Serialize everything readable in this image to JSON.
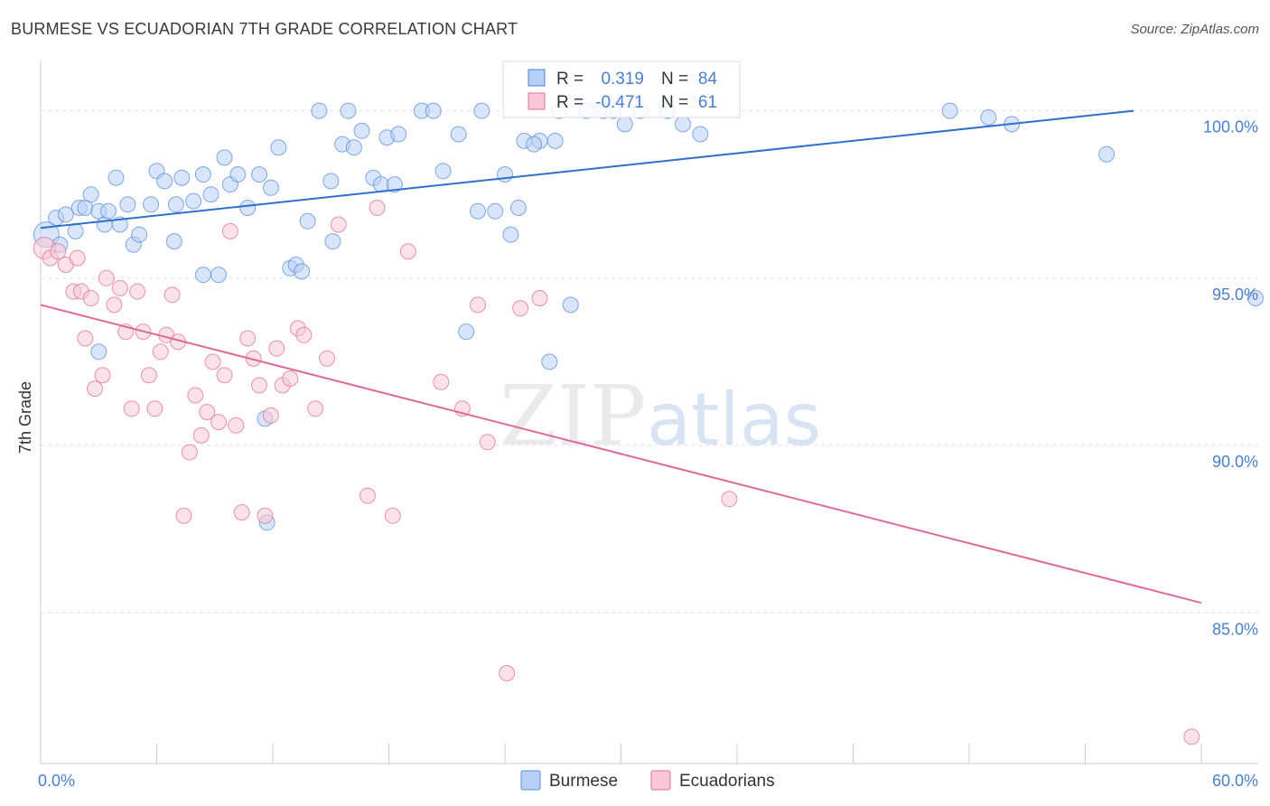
{
  "title": "BURMESE VS ECUADORIAN 7TH GRADE CORRELATION CHART",
  "source": "Source: ZipAtlas.com",
  "watermark": {
    "zip": "ZIP",
    "atlas": "atlas"
  },
  "chart_data": {
    "type": "scatter",
    "ylabel": "7th Grade",
    "xlim": [
      0,
      60
    ],
    "ylim": [
      80.5,
      101.5
    ],
    "x_ticks": [
      {
        "value": 0,
        "label": "0.0%"
      },
      {
        "value": 60,
        "label": "60.0%"
      }
    ],
    "y_ticks": [
      {
        "value": 100,
        "label": "100.0%"
      },
      {
        "value": 95,
        "label": "95.0%"
      },
      {
        "value": 90,
        "label": "90.0%"
      },
      {
        "value": 85,
        "label": "85.0%"
      }
    ],
    "grid": true,
    "legend": {
      "placement": "top-center",
      "entries": [
        {
          "r_label": "R =",
          "r_value": "0.319",
          "n_label": "N =",
          "n_value": "84",
          "color": "#4a7fd0",
          "fill": "#b8d0f5"
        },
        {
          "r_label": "R =",
          "r_value": "-0.471",
          "n_label": "N =",
          "n_value": "61",
          "color": "#e07098",
          "fill": "#f8c8d6"
        }
      ]
    },
    "series": [
      {
        "name": "Burmese",
        "color": "#5b8fd8",
        "fill": "#b8d0f5",
        "trend": {
          "x": [
            0,
            56.5
          ],
          "y": [
            96.5,
            100.0
          ]
        },
        "points": [
          [
            0.3,
            96.3
          ],
          [
            0.8,
            96.8
          ],
          [
            1.0,
            96.0
          ],
          [
            1.3,
            96.9
          ],
          [
            1.8,
            96.4
          ],
          [
            2.0,
            97.1
          ],
          [
            2.3,
            97.1
          ],
          [
            2.6,
            97.5
          ],
          [
            3.0,
            97.0
          ],
          [
            3.3,
            96.6
          ],
          [
            3.5,
            97.0
          ],
          [
            3.9,
            98.0
          ],
          [
            4.1,
            96.6
          ],
          [
            4.5,
            97.2
          ],
          [
            4.8,
            96.0
          ],
          [
            5.1,
            96.3
          ],
          [
            5.7,
            97.2
          ],
          [
            6.0,
            98.2
          ],
          [
            6.4,
            97.9
          ],
          [
            6.9,
            96.1
          ],
          [
            7.0,
            97.2
          ],
          [
            7.3,
            98.0
          ],
          [
            7.9,
            97.3
          ],
          [
            8.4,
            98.1
          ],
          [
            8.8,
            97.5
          ],
          [
            9.5,
            98.6
          ],
          [
            9.8,
            97.8
          ],
          [
            10.2,
            98.1
          ],
          [
            10.7,
            97.1
          ],
          [
            11.3,
            98.1
          ],
          [
            11.9,
            97.7
          ],
          [
            12.3,
            98.9
          ],
          [
            12.9,
            95.3
          ],
          [
            13.2,
            95.4
          ],
          [
            13.5,
            95.2
          ],
          [
            13.8,
            96.7
          ],
          [
            14.4,
            100.0
          ],
          [
            15.0,
            97.9
          ],
          [
            15.1,
            96.1
          ],
          [
            15.6,
            99.0
          ],
          [
            15.9,
            100.0
          ],
          [
            16.2,
            98.9
          ],
          [
            16.6,
            99.4
          ],
          [
            17.2,
            98.0
          ],
          [
            17.6,
            97.8
          ],
          [
            17.9,
            99.2
          ],
          [
            18.3,
            97.8
          ],
          [
            18.5,
            99.3
          ],
          [
            19.7,
            100.0
          ],
          [
            20.3,
            100.0
          ],
          [
            20.8,
            98.2
          ],
          [
            21.6,
            99.3
          ],
          [
            22.0,
            93.4
          ],
          [
            22.6,
            97.0
          ],
          [
            22.8,
            100.0
          ],
          [
            23.5,
            97.0
          ],
          [
            24.0,
            98.1
          ],
          [
            24.3,
            96.3
          ],
          [
            24.7,
            97.1
          ],
          [
            25.0,
            99.1
          ],
          [
            25.8,
            99.1
          ],
          [
            26.3,
            92.5
          ],
          [
            26.8,
            100.0
          ],
          [
            27.4,
            94.2
          ],
          [
            28.2,
            100.0
          ],
          [
            29.1,
            100.0
          ],
          [
            29.6,
            100.0
          ],
          [
            30.2,
            99.6
          ],
          [
            31.0,
            100.0
          ],
          [
            32.4,
            100.0
          ],
          [
            33.2,
            99.6
          ],
          [
            34.1,
            99.3
          ],
          [
            47.0,
            100.0
          ],
          [
            49.0,
            99.8
          ],
          [
            50.2,
            99.6
          ],
          [
            55.1,
            98.7
          ],
          [
            62.8,
            94.4
          ],
          [
            3.0,
            92.8
          ],
          [
            8.4,
            95.1
          ],
          [
            9.2,
            95.1
          ],
          [
            11.6,
            90.8
          ],
          [
            11.7,
            87.7
          ],
          [
            25.5,
            99.0
          ],
          [
            26.6,
            99.1
          ]
        ]
      },
      {
        "name": "Ecuadorians",
        "color": "#e07098",
        "fill": "#f8c8d6",
        "trend": {
          "x": [
            0,
            60
          ],
          "y": [
            94.2,
            85.3
          ]
        },
        "points": [
          [
            0.2,
            95.9
          ],
          [
            0.5,
            95.6
          ],
          [
            0.9,
            95.8
          ],
          [
            1.3,
            95.4
          ],
          [
            1.7,
            94.6
          ],
          [
            2.1,
            94.6
          ],
          [
            2.3,
            93.2
          ],
          [
            2.6,
            94.4
          ],
          [
            2.8,
            91.7
          ],
          [
            3.2,
            92.1
          ],
          [
            3.4,
            95.0
          ],
          [
            3.8,
            94.2
          ],
          [
            4.1,
            94.7
          ],
          [
            4.4,
            93.4
          ],
          [
            4.7,
            91.1
          ],
          [
            5.0,
            94.6
          ],
          [
            5.3,
            93.4
          ],
          [
            5.6,
            92.1
          ],
          [
            5.9,
            91.1
          ],
          [
            6.2,
            92.8
          ],
          [
            6.5,
            93.3
          ],
          [
            6.8,
            94.5
          ],
          [
            7.1,
            93.1
          ],
          [
            7.4,
            87.9
          ],
          [
            7.7,
            89.8
          ],
          [
            8.0,
            91.5
          ],
          [
            8.3,
            90.3
          ],
          [
            8.6,
            91.0
          ],
          [
            8.9,
            92.5
          ],
          [
            9.2,
            90.7
          ],
          [
            9.5,
            92.1
          ],
          [
            9.8,
            96.4
          ],
          [
            10.1,
            90.6
          ],
          [
            10.4,
            88.0
          ],
          [
            10.7,
            93.2
          ],
          [
            11.0,
            92.6
          ],
          [
            11.3,
            91.8
          ],
          [
            11.6,
            87.9
          ],
          [
            11.9,
            90.9
          ],
          [
            12.2,
            92.9
          ],
          [
            12.5,
            91.8
          ],
          [
            12.9,
            92.0
          ],
          [
            13.3,
            93.5
          ],
          [
            13.6,
            93.3
          ],
          [
            14.2,
            91.1
          ],
          [
            14.8,
            92.6
          ],
          [
            15.4,
            96.6
          ],
          [
            16.9,
            88.5
          ],
          [
            17.4,
            97.1
          ],
          [
            18.2,
            87.9
          ],
          [
            19.0,
            95.8
          ],
          [
            20.7,
            91.9
          ],
          [
            21.8,
            91.1
          ],
          [
            22.6,
            94.2
          ],
          [
            23.1,
            90.1
          ],
          [
            24.1,
            83.2
          ],
          [
            24.8,
            94.1
          ],
          [
            25.8,
            94.4
          ],
          [
            35.6,
            88.4
          ],
          [
            59.5,
            81.3
          ],
          [
            1.9,
            95.6
          ]
        ]
      }
    ]
  }
}
